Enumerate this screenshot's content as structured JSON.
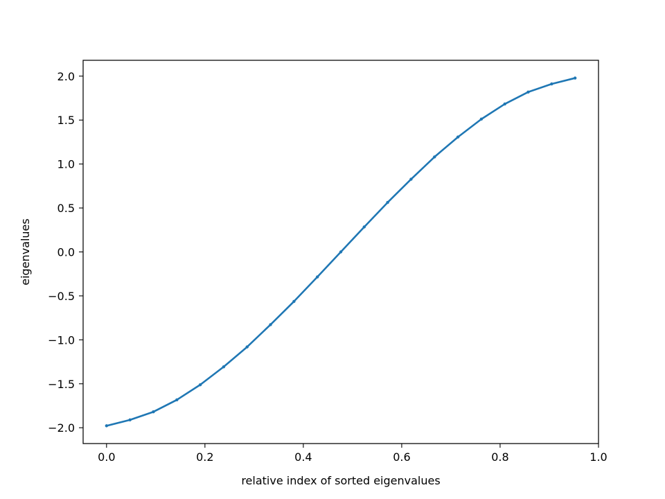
{
  "chart_data": {
    "type": "line",
    "title": "",
    "xlabel": "relative index of sorted eigenvalues",
    "ylabel": "eigenvalues",
    "xlim": [
      -0.0476,
      1.0
    ],
    "ylim": [
      -2.18,
      2.18
    ],
    "grid": false,
    "legend": "none",
    "colors": {
      "line": "#1f77b4",
      "axes": "#000000",
      "background": "#ffffff"
    },
    "x_ticks": [
      {
        "value": 0.0,
        "label": "0.0"
      },
      {
        "value": 0.2,
        "label": "0.2"
      },
      {
        "value": 0.4,
        "label": "0.4"
      },
      {
        "value": 0.6,
        "label": "0.6"
      },
      {
        "value": 0.8,
        "label": "0.8"
      },
      {
        "value": 1.0,
        "label": "1.0"
      }
    ],
    "y_ticks": [
      {
        "value": 2.0,
        "label": "2.0"
      },
      {
        "value": 1.5,
        "label": "1.5"
      },
      {
        "value": 1.0,
        "label": "1.0"
      },
      {
        "value": 0.5,
        "label": "0.5"
      },
      {
        "value": 0.0,
        "label": "0.0"
      },
      {
        "value": -0.5,
        "label": "−0.5"
      },
      {
        "value": -1.0,
        "label": "−1.0"
      },
      {
        "value": -1.5,
        "label": "−1.5"
      },
      {
        "value": -2.0,
        "label": "−2.0"
      }
    ],
    "series": [
      {
        "x": [
          0.0,
          0.0476,
          0.0952,
          0.1429,
          0.1905,
          0.2381,
          0.2857,
          0.3333,
          0.381,
          0.4286,
          0.4762,
          0.5238,
          0.5714,
          0.619,
          0.6667,
          0.7143,
          0.7619,
          0.8095,
          0.8571,
          0.9048,
          0.9524
        ],
        "y": [
          -1.978,
          -1.911,
          -1.819,
          -1.683,
          -1.511,
          -1.307,
          -1.081,
          -0.827,
          -0.563,
          -0.284,
          0.0,
          0.284,
          0.563,
          0.827,
          1.081,
          1.307,
          1.511,
          1.683,
          1.819,
          1.911,
          1.978
        ]
      }
    ]
  }
}
